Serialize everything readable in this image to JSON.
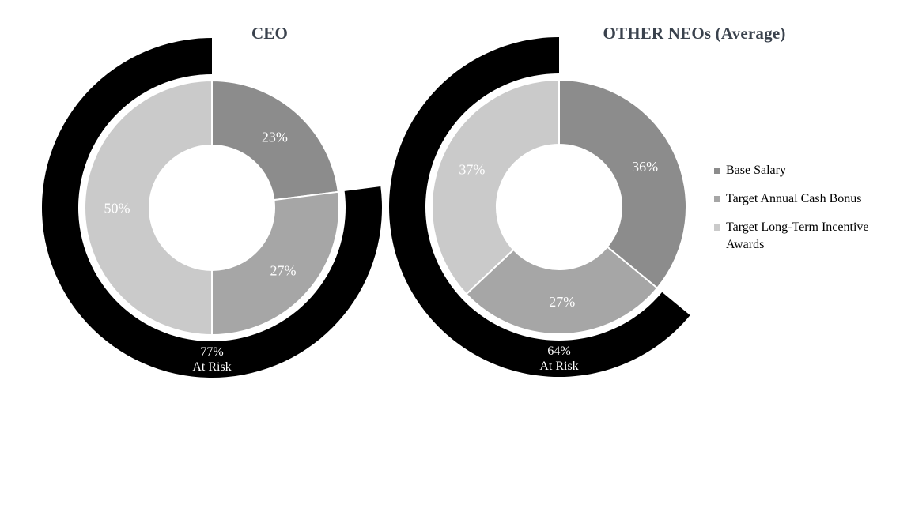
{
  "colors": {
    "background": "#ffffff",
    "title_text": "#3a424d",
    "slice_label_text": "#ffffff",
    "at_risk_ring": "#000000",
    "separator": "#ffffff",
    "legend_text": "#000000"
  },
  "legend": {
    "position": "right",
    "items": [
      {
        "label": "Base Salary",
        "color": "#8c8c8c",
        "marker": "square"
      },
      {
        "label": "Target Annual Cash Bonus",
        "color": "#a6a6a6",
        "marker": "square"
      },
      {
        "label": "Target Long-Term Incentive Awards",
        "color": "#cacaca",
        "marker": "square"
      }
    ]
  },
  "chart_data": [
    {
      "type": "pie",
      "variant": "donut-with-outer-at-risk-ring",
      "title": "CEO",
      "categories": [
        "Base Salary",
        "Target Annual Cash Bonus",
        "Target Long-Term Incentive Awards"
      ],
      "values": [
        23,
        27,
        50
      ],
      "slice_labels": [
        "23%",
        "27%",
        "50%"
      ],
      "slice_colors": [
        "#8c8c8c",
        "#a6a6a6",
        "#cacaca"
      ],
      "start_angle_deg": 0,
      "direction": "clockwise",
      "at_risk": {
        "percent": 77,
        "value_label": "77%",
        "text_label": "At Risk",
        "color": "#000000",
        "covers_categories": [
          "Target Annual Cash Bonus",
          "Target Long-Term Incentive Awards"
        ]
      }
    },
    {
      "type": "pie",
      "variant": "donut-with-outer-at-risk-ring",
      "title": "OTHER NEOs (Average)",
      "categories": [
        "Base Salary",
        "Target Annual Cash Bonus",
        "Target Long-Term Incentive Awards"
      ],
      "values": [
        36,
        27,
        37
      ],
      "slice_labels": [
        "36%",
        "27%",
        "37%"
      ],
      "slice_colors": [
        "#8c8c8c",
        "#a6a6a6",
        "#cacaca"
      ],
      "start_angle_deg": 0,
      "direction": "clockwise",
      "at_risk": {
        "percent": 64,
        "value_label": "64%",
        "text_label": "At Risk",
        "color": "#000000",
        "covers_categories": [
          "Target Annual Cash Bonus",
          "Target Long-Term Incentive Awards"
        ]
      }
    }
  ]
}
